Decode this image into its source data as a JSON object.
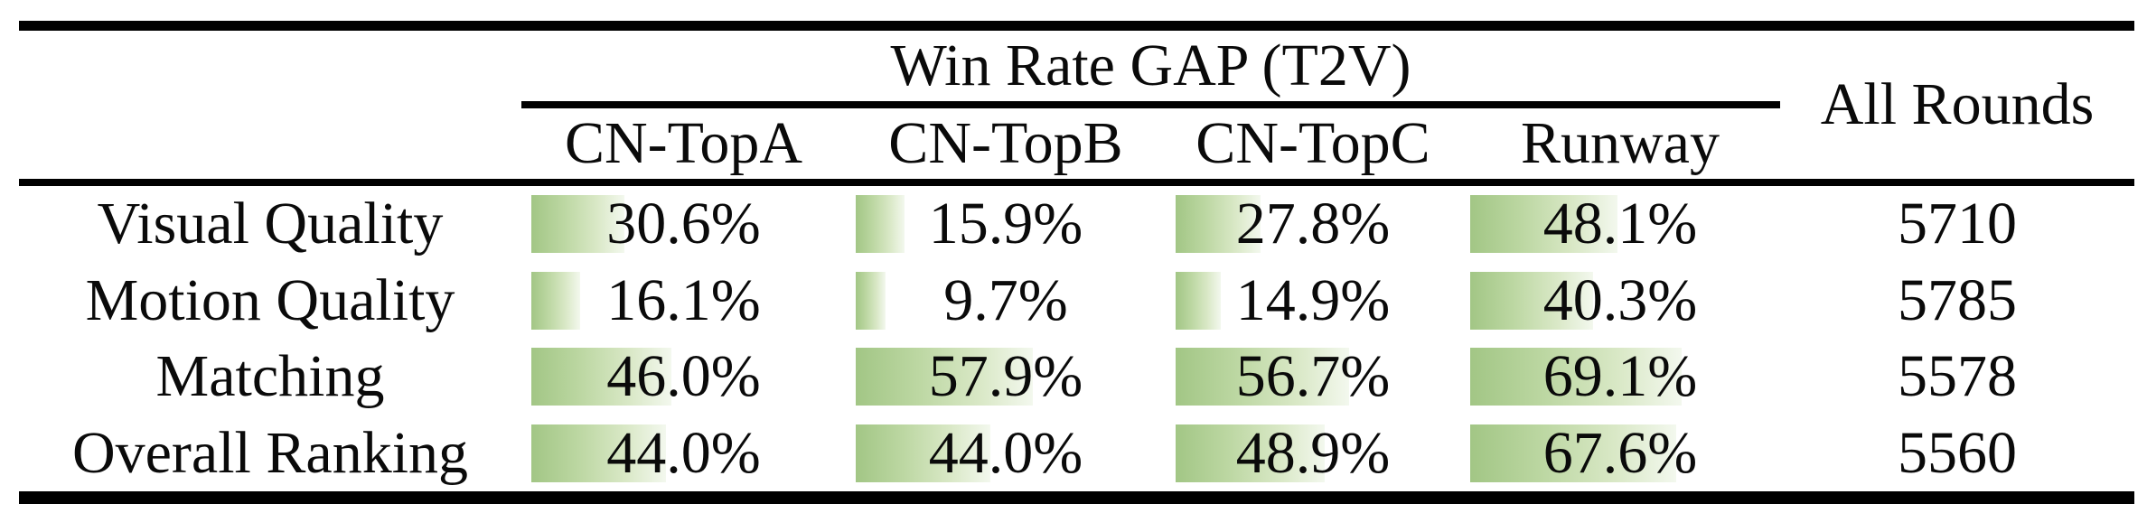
{
  "table": {
    "group_header": "Win Rate GAP (T2V)",
    "columns": [
      "CN-TopA",
      "CN-TopB",
      "CN-TopC",
      "Runway"
    ],
    "last_column": "All Rounds"
  },
  "chart_data": {
    "type": "bar",
    "title": "Win Rate GAP (T2V)",
    "categories": [
      "CN-TopA",
      "CN-TopB",
      "CN-TopC",
      "Runway"
    ],
    "last_column_label": "All Rounds",
    "unit": "percent",
    "bar_fill_color_left": "#a2c685",
    "bar_fill_color_right": "#f3f8ee",
    "value_range": [
      0,
      100
    ],
    "rows": [
      {
        "label": "Visual Quality",
        "values": [
          30.6,
          15.9,
          27.8,
          48.1
        ],
        "display": [
          "30.6%",
          "15.9%",
          "27.8%",
          "48.1%"
        ],
        "all_rounds": "5710"
      },
      {
        "label": "Motion Quality",
        "values": [
          16.1,
          9.7,
          14.9,
          40.3
        ],
        "display": [
          "16.1%",
          "9.7%",
          "14.9%",
          "40.3%"
        ],
        "all_rounds": "5785"
      },
      {
        "label": "Matching",
        "values": [
          46.0,
          57.9,
          56.7,
          69.1
        ],
        "display": [
          "46.0%",
          "57.9%",
          "56.7%",
          "69.1%"
        ],
        "all_rounds": "5578"
      },
      {
        "label": "Overall Ranking",
        "values": [
          44.0,
          44.0,
          48.9,
          67.6
        ],
        "display": [
          "44.0%",
          "44.0%",
          "48.9%",
          "67.6%"
        ],
        "all_rounds": "5560"
      }
    ]
  }
}
